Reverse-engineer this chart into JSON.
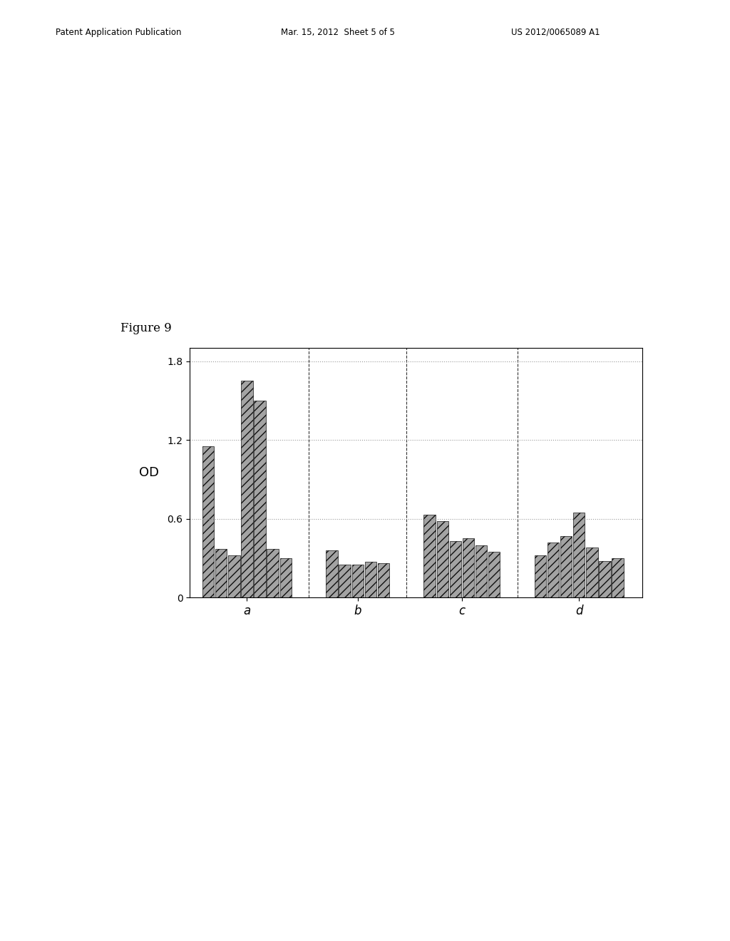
{
  "title": "Figure 9",
  "ylabel": "OD",
  "xlabel": "",
  "groups": [
    "a",
    "b",
    "c",
    "d"
  ],
  "group_values": [
    [
      1.15,
      0.37,
      0.32,
      1.65,
      1.5,
      0.37,
      0.3
    ],
    [
      0.36,
      0.25,
      0.25,
      0.27,
      0.26
    ],
    [
      0.63,
      0.58,
      0.43,
      0.45,
      0.4,
      0.35
    ],
    [
      0.32,
      0.42,
      0.47,
      0.65,
      0.38,
      0.28,
      0.3
    ]
  ],
  "ylim": [
    0,
    1.9
  ],
  "yticks": [
    0,
    0.6,
    1.2,
    1.8
  ],
  "ytick_labels": [
    "0",
    "0.6",
    "1.2",
    "1.8"
  ],
  "bar_color": "#999999",
  "hatch": "///",
  "background_color": "#ffffff",
  "fig_width": 10.24,
  "fig_height": 13.2,
  "dpi": 100,
  "header_left": "Patent Application Publication",
  "header_mid": "Mar. 15, 2012  Sheet 5 of 5",
  "header_right": "US 2012/0065089 A1"
}
